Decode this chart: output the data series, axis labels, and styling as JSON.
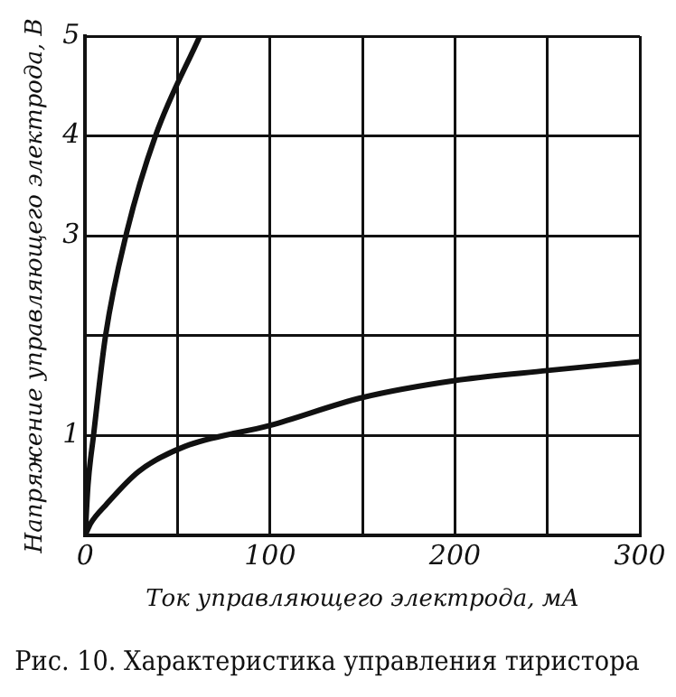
{
  "chart_data": {
    "type": "line",
    "title": "Рис. 10. Характеристика управления тиристора",
    "xlabel": "Ток управляющего электрода, мА",
    "ylabel": "Напряжение управляющего электрода, В",
    "series": [
      {
        "color": "#111111",
        "x": [
          0,
          1.5,
          4.5,
          11,
          22,
          38,
          62
        ],
        "values": [
          0,
          0.5,
          1,
          2,
          3,
          4,
          5
        ]
      },
      {
        "color": "#111111",
        "x": [
          0,
          3,
          11,
          29,
          54,
          100,
          150,
          200,
          250,
          300
        ],
        "values": [
          0,
          0.12,
          0.3,
          0.64,
          0.89,
          1.1,
          1.38,
          1.55,
          1.65,
          1.74
        ]
      }
    ],
    "xlim": [
      0,
      300
    ],
    "xticks": [
      0,
      {
        "value": 50,
        "label": null
      },
      100,
      {
        "value": 150,
        "label": null
      },
      200,
      {
        "value": 250,
        "label": null
      },
      300
    ],
    "ylim": [
      0,
      5
    ],
    "yticks": [
      {
        "value": 1,
        "label": "1"
      },
      {
        "value": 2,
        "label": null
      },
      3,
      4,
      5
    ],
    "grid": true,
    "legend": false,
    "marker": "none",
    "line_style": "solid"
  }
}
